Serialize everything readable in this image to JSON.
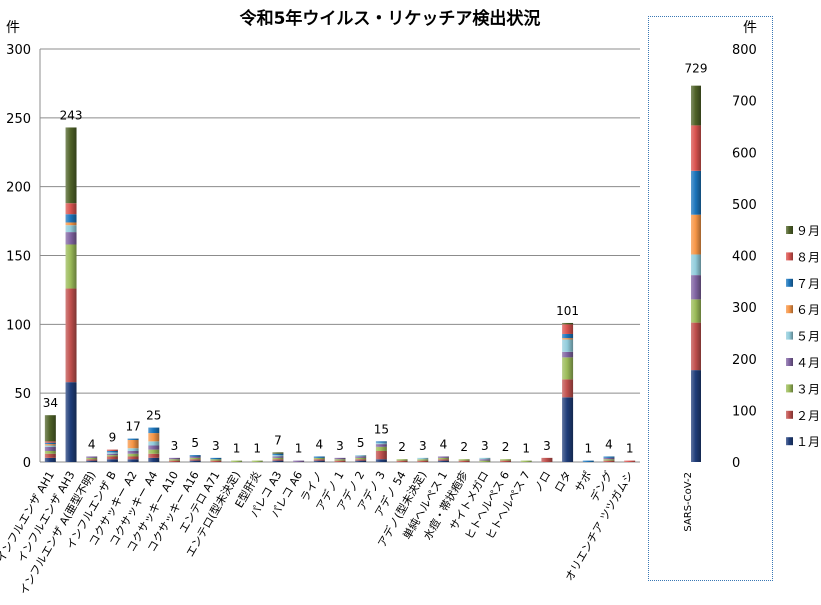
{
  "title": "令和5年ウイルス・リケッチア検出状況",
  "chart_data": [
    {
      "type": "bar",
      "stacked": true,
      "ylabel": "件",
      "ylim": [
        0,
        300
      ],
      "yticks": [
        0,
        50,
        100,
        150,
        200,
        250,
        300
      ],
      "grid": true,
      "categories": [
        "インフルエンザ AH1",
        "インフルエンザ AH3",
        "インフルエンザ A(亜型不明)",
        "インフルエンザ B",
        "コクサッキー A2",
        "コクサッキー A4",
        "コクサッキー A10",
        "コクサッキー A16",
        "エンテロ A71",
        "エンテロ(型未決定)",
        "E型肝炎",
        "パレコ A3",
        "パレコ A6",
        "ライノ",
        "アデノ 1",
        "アデノ 2",
        "アデノ 3",
        "アデノ 54",
        "アデノ(型未決定)",
        "単純ヘルペス 1",
        "水痘・帯状疱疹",
        "サイトメガロ",
        "ヒトヘルペス 6",
        "ヒトヘルペス 7",
        "ノロ",
        "ロタ",
        "サポ",
        "デング",
        "オリエンチア ツツガムシ"
      ],
      "totals": [
        34,
        243,
        4,
        9,
        17,
        25,
        3,
        5,
        3,
        1,
        1,
        7,
        1,
        4,
        3,
        5,
        15,
        2,
        3,
        4,
        2,
        3,
        2,
        1,
        3,
        101,
        1,
        4,
        1
      ],
      "series": [
        {
          "name": "１月",
          "color": "#1f3d7a",
          "values": [
            3,
            58,
            1,
            2,
            2,
            3,
            0,
            1,
            0,
            0,
            0,
            1,
            0,
            1,
            0,
            1,
            2,
            0,
            0,
            1,
            0,
            0,
            0,
            0,
            0,
            47,
            0,
            0,
            0
          ]
        },
        {
          "name": "２月",
          "color": "#c0504d",
          "values": [
            3,
            68,
            1,
            2,
            2,
            3,
            1,
            1,
            1,
            0,
            0,
            1,
            0,
            1,
            1,
            1,
            6,
            1,
            1,
            1,
            1,
            0,
            1,
            0,
            3,
            13,
            0,
            1,
            0
          ]
        },
        {
          "name": "３月",
          "color": "#9bbb59",
          "values": [
            2,
            32,
            1,
            1,
            2,
            3,
            1,
            1,
            1,
            1,
            1,
            1,
            0,
            1,
            1,
            1,
            3,
            1,
            1,
            1,
            1,
            1,
            1,
            1,
            0,
            16,
            0,
            1,
            0
          ]
        },
        {
          "name": "４月",
          "color": "#8064a2",
          "values": [
            3,
            9,
            1,
            1,
            2,
            3,
            1,
            1,
            0,
            0,
            0,
            1,
            1,
            0,
            1,
            1,
            2,
            0,
            0,
            1,
            0,
            1,
            0,
            0,
            0,
            4,
            0,
            1,
            0
          ]
        },
        {
          "name": "５月",
          "color": "#92cddc",
          "values": [
            1,
            5,
            0,
            1,
            2,
            3,
            0,
            0,
            0,
            0,
            0,
            1,
            0,
            0,
            0,
            1,
            1,
            0,
            1,
            0,
            0,
            1,
            0,
            0,
            0,
            9,
            0,
            0,
            0
          ]
        },
        {
          "name": "６月",
          "color": "#f79646",
          "values": [
            1,
            2,
            0,
            0,
            6,
            6,
            0,
            0,
            0,
            0,
            0,
            0,
            0,
            0,
            0,
            0,
            0,
            0,
            0,
            0,
            0,
            0,
            0,
            0,
            0,
            1,
            0,
            0,
            0
          ]
        },
        {
          "name": "７月",
          "color": "#1b75bc",
          "values": [
            1,
            6,
            0,
            1,
            1,
            4,
            0,
            1,
            1,
            0,
            0,
            1,
            0,
            1,
            0,
            0,
            1,
            0,
            0,
            0,
            0,
            0,
            0,
            0,
            0,
            3,
            1,
            1,
            0
          ]
        },
        {
          "name": "８月",
          "color": "#d9534f",
          "values": [
            1,
            8,
            0,
            1,
            0,
            0,
            0,
            0,
            0,
            0,
            0,
            0,
            0,
            0,
            0,
            0,
            0,
            0,
            0,
            0,
            0,
            0,
            0,
            0,
            0,
            7,
            0,
            0,
            1
          ]
        },
        {
          "name": "９月",
          "color": "#4f6228",
          "values": [
            19,
            55,
            0,
            0,
            0,
            0,
            0,
            0,
            0,
            0,
            0,
            1,
            0,
            0,
            0,
            0,
            0,
            0,
            0,
            0,
            0,
            0,
            0,
            0,
            0,
            1,
            0,
            0,
            0
          ]
        }
      ]
    },
    {
      "type": "bar",
      "stacked": true,
      "ylabel": "件",
      "ylim": [
        0,
        800
      ],
      "yticks": [
        0,
        100,
        200,
        300,
        400,
        500,
        600,
        700,
        800
      ],
      "grid": false,
      "categories": [
        "SARS-CoV-2"
      ],
      "totals": [
        729
      ],
      "series": [
        {
          "name": "１月",
          "values": [
            178
          ]
        },
        {
          "name": "２月",
          "values": [
            92
          ]
        },
        {
          "name": "３月",
          "values": [
            45
          ]
        },
        {
          "name": "４月",
          "values": [
            47
          ]
        },
        {
          "name": "５月",
          "values": [
            40
          ]
        },
        {
          "name": "６月",
          "values": [
            77
          ]
        },
        {
          "name": "７月",
          "values": [
            85
          ]
        },
        {
          "name": "８月",
          "values": [
            88
          ]
        },
        {
          "name": "９月",
          "values": [
            77
          ]
        }
      ],
      "legend_position": "right"
    }
  ]
}
